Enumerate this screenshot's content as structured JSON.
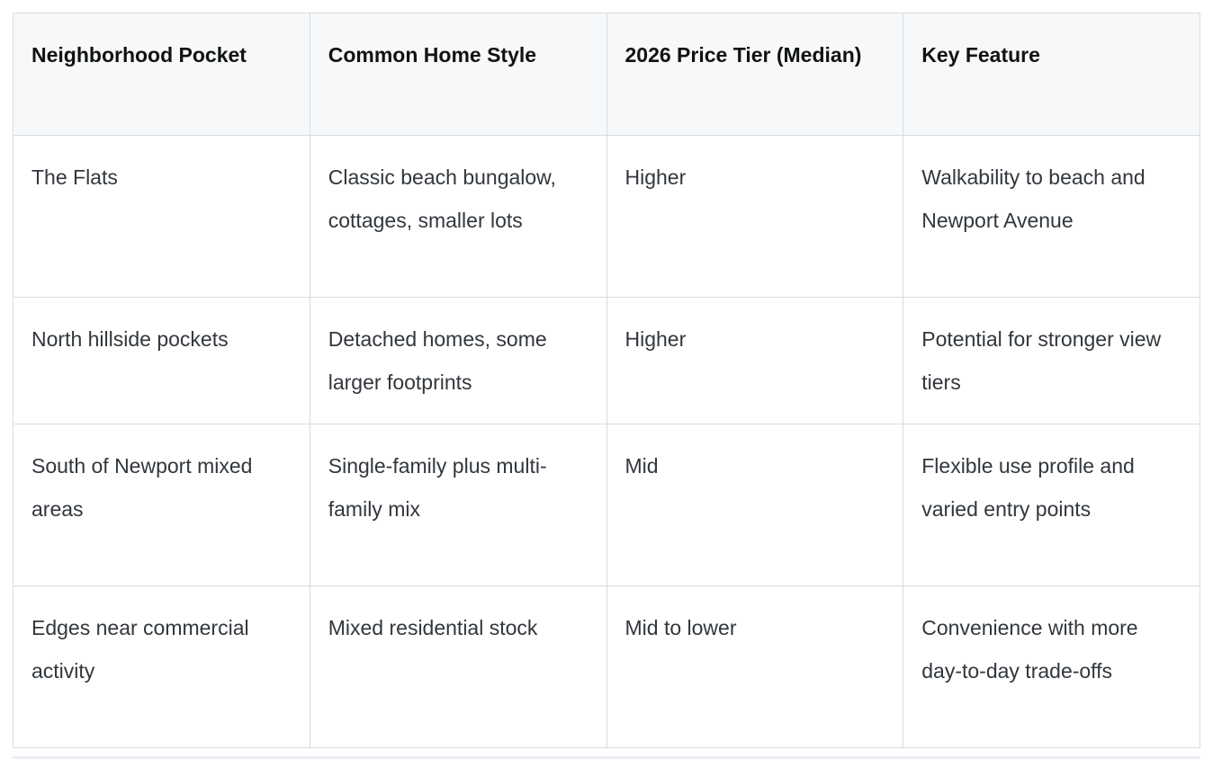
{
  "table": {
    "columns": [
      "Neighborhood Pocket",
      "Common Home Style",
      "2026 Price Tier (Median)",
      "Key Feature"
    ],
    "rows": [
      [
        "The Flats",
        "Classic beach bungalow, cottages, smaller lots",
        "Higher",
        "Walkability to beach and Newport Avenue"
      ],
      [
        "North hillside pockets",
        "Detached homes, some larger footprints",
        "Higher",
        "Potential for stronger view tiers"
      ],
      [
        "South of Newport mixed areas",
        "Single-family plus multi-family mix",
        "Mid",
        "Flexible use profile and varied entry points"
      ],
      [
        "Edges near commercial activity",
        "Mixed residential stock",
        "Mid to lower",
        "Convenience with more day-to-day trade-offs"
      ]
    ],
    "colors": {
      "header_bg": "#f6f8fa",
      "border": "#d8dce1",
      "header_text": "#101214",
      "body_text": "#32373c",
      "page_bg": "#ffffff",
      "partial_bar_bg": "#e9eef4"
    }
  }
}
